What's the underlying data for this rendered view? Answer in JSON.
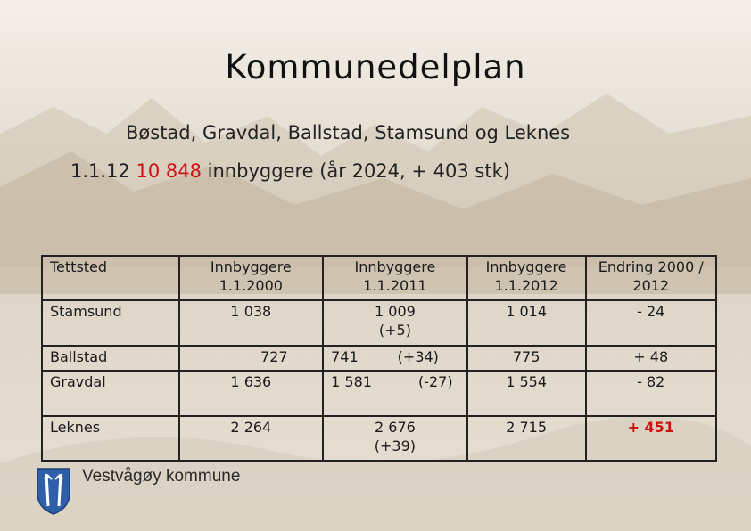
{
  "title": "Kommunedelplan",
  "subtitle": "Bøstad, Gravdal, Ballstad, Stamsund og Leknes",
  "stats": {
    "prefix": "1.1.12",
    "highlight": "10 848",
    "suffix": "innbyggere (år 2024, + 403 stk)"
  },
  "table": {
    "headers": [
      "Tettsted",
      "Innbyggere 1.1.2000",
      "Innbyggere 1.1.2011",
      "Innbyggere 1.1.2012",
      "Endring 2000 / 2012"
    ],
    "rows": [
      {
        "place": "Stamsund",
        "y2000": "1 038",
        "y2011": "1 009",
        "y2011_change": "(+5)",
        "y2012": "1 014",
        "change": "- 24"
      },
      {
        "place": "Ballstad",
        "y2000": "727",
        "y2011": "741",
        "y2011_change": "(+34)",
        "y2012": "775",
        "change": "+ 48"
      },
      {
        "place": "Gravdal",
        "y2000": "1 636",
        "y2011": "1 581",
        "y2011_change": "(-27)",
        "y2012": "1 554",
        "change": "- 82"
      },
      {
        "place": "Leknes",
        "y2000": "2 264",
        "y2011": "2 676",
        "y2011_change": "(+39)",
        "y2012": "2 715",
        "change": "+ 451"
      }
    ]
  },
  "logo": {
    "text": "Vestvågøy kommune",
    "icon": "coat-of-arms-icon",
    "color": "#2f5fa8"
  },
  "colors": {
    "highlight": "#d01010"
  }
}
